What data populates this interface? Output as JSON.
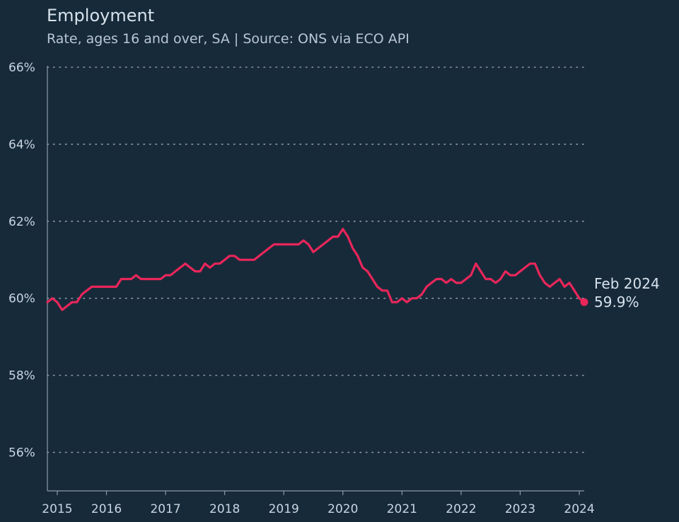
{
  "header": {
    "title": "Employment",
    "subtitle": "Rate, ages 16 and over, SA | Source: ONS via ECO API"
  },
  "colors": {
    "background": "#172a3a",
    "line": "#e8265a",
    "grid": "#8a9aa8",
    "axis": "#8a9aa8",
    "text": "#c9d6e2"
  },
  "chart_data": {
    "type": "line",
    "title": "Employment",
    "subtitle": "Rate, ages 16 and over, SA | Source: ONS via ECO API",
    "xlabel": "",
    "ylabel": "",
    "ylim": [
      55,
      66
    ],
    "xlim": [
      "2015-01",
      "2024-02"
    ],
    "y_ticks": [
      {
        "value": 56,
        "label": "56%"
      },
      {
        "value": 58,
        "label": "58%"
      },
      {
        "value": 60,
        "label": "60%"
      },
      {
        "value": 62,
        "label": "62%"
      },
      {
        "value": 64,
        "label": "64%"
      },
      {
        "value": 66,
        "label": "66%"
      }
    ],
    "x_ticks": [
      {
        "value": "2015-03",
        "label": "2015"
      },
      {
        "value": "2016-01",
        "label": "2016"
      },
      {
        "value": "2017-01",
        "label": "2017"
      },
      {
        "value": "2018-01",
        "label": "2018"
      },
      {
        "value": "2019-01",
        "label": "2019"
      },
      {
        "value": "2020-01",
        "label": "2020"
      },
      {
        "value": "2021-01",
        "label": "2021"
      },
      {
        "value": "2022-01",
        "label": "2022"
      },
      {
        "value": "2023-01",
        "label": "2023"
      },
      {
        "value": "2024-01",
        "label": "2024"
      }
    ],
    "grid": "horizontal dotted",
    "series": [
      {
        "points": [
          [
            "2015-01",
            59.9
          ],
          [
            "2015-02",
            60.0
          ],
          [
            "2015-03",
            59.9
          ],
          [
            "2015-04",
            59.7
          ],
          [
            "2015-05",
            59.8
          ],
          [
            "2015-06",
            59.9
          ],
          [
            "2015-07",
            59.9
          ],
          [
            "2015-08",
            60.1
          ],
          [
            "2015-09",
            60.2
          ],
          [
            "2015-10",
            60.3
          ],
          [
            "2015-11",
            60.3
          ],
          [
            "2015-12",
            60.3
          ],
          [
            "2016-01",
            60.3
          ],
          [
            "2016-02",
            60.3
          ],
          [
            "2016-03",
            60.3
          ],
          [
            "2016-04",
            60.5
          ],
          [
            "2016-05",
            60.5
          ],
          [
            "2016-06",
            60.5
          ],
          [
            "2016-07",
            60.6
          ],
          [
            "2016-08",
            60.5
          ],
          [
            "2016-09",
            60.5
          ],
          [
            "2016-10",
            60.5
          ],
          [
            "2016-11",
            60.5
          ],
          [
            "2016-12",
            60.5
          ],
          [
            "2017-01",
            60.6
          ],
          [
            "2017-02",
            60.6
          ],
          [
            "2017-03",
            60.7
          ],
          [
            "2017-04",
            60.8
          ],
          [
            "2017-05",
            60.9
          ],
          [
            "2017-06",
            60.8
          ],
          [
            "2017-07",
            60.7
          ],
          [
            "2017-08",
            60.7
          ],
          [
            "2017-09",
            60.9
          ],
          [
            "2017-10",
            60.8
          ],
          [
            "2017-11",
            60.9
          ],
          [
            "2017-12",
            60.9
          ],
          [
            "2018-01",
            61.0
          ],
          [
            "2018-02",
            61.1
          ],
          [
            "2018-03",
            61.1
          ],
          [
            "2018-04",
            61.0
          ],
          [
            "2018-05",
            61.0
          ],
          [
            "2018-06",
            61.0
          ],
          [
            "2018-07",
            61.0
          ],
          [
            "2018-08",
            61.1
          ],
          [
            "2018-09",
            61.2
          ],
          [
            "2018-10",
            61.3
          ],
          [
            "2018-11",
            61.4
          ],
          [
            "2018-12",
            61.4
          ],
          [
            "2019-01",
            61.4
          ],
          [
            "2019-02",
            61.4
          ],
          [
            "2019-03",
            61.4
          ],
          [
            "2019-04",
            61.4
          ],
          [
            "2019-05",
            61.5
          ],
          [
            "2019-06",
            61.4
          ],
          [
            "2019-07",
            61.2
          ],
          [
            "2019-08",
            61.3
          ],
          [
            "2019-09",
            61.4
          ],
          [
            "2019-10",
            61.5
          ],
          [
            "2019-11",
            61.6
          ],
          [
            "2019-12",
            61.6
          ],
          [
            "2020-01",
            61.8
          ],
          [
            "2020-02",
            61.6
          ],
          [
            "2020-03",
            61.3
          ],
          [
            "2020-04",
            61.1
          ],
          [
            "2020-05",
            60.8
          ],
          [
            "2020-06",
            60.7
          ],
          [
            "2020-07",
            60.5
          ],
          [
            "2020-08",
            60.3
          ],
          [
            "2020-09",
            60.2
          ],
          [
            "2020-10",
            60.2
          ],
          [
            "2020-11",
            59.9
          ],
          [
            "2020-12",
            59.9
          ],
          [
            "2021-01",
            60.0
          ],
          [
            "2021-02",
            59.9
          ],
          [
            "2021-03",
            60.0
          ],
          [
            "2021-04",
            60.0
          ],
          [
            "2021-05",
            60.1
          ],
          [
            "2021-06",
            60.3
          ],
          [
            "2021-07",
            60.4
          ],
          [
            "2021-08",
            60.5
          ],
          [
            "2021-09",
            60.5
          ],
          [
            "2021-10",
            60.4
          ],
          [
            "2021-11",
            60.5
          ],
          [
            "2021-12",
            60.4
          ],
          [
            "2022-01",
            60.4
          ],
          [
            "2022-02",
            60.5
          ],
          [
            "2022-03",
            60.6
          ],
          [
            "2022-04",
            60.9
          ],
          [
            "2022-05",
            60.7
          ],
          [
            "2022-06",
            60.5
          ],
          [
            "2022-07",
            60.5
          ],
          [
            "2022-08",
            60.4
          ],
          [
            "2022-09",
            60.5
          ],
          [
            "2022-10",
            60.7
          ],
          [
            "2022-11",
            60.6
          ],
          [
            "2022-12",
            60.6
          ],
          [
            "2023-01",
            60.7
          ],
          [
            "2023-02",
            60.8
          ],
          [
            "2023-03",
            60.9
          ],
          [
            "2023-04",
            60.9
          ],
          [
            "2023-05",
            60.6
          ],
          [
            "2023-06",
            60.4
          ],
          [
            "2023-07",
            60.3
          ],
          [
            "2023-08",
            60.4
          ],
          [
            "2023-09",
            60.5
          ],
          [
            "2023-10",
            60.3
          ],
          [
            "2023-11",
            60.4
          ],
          [
            "2023-12",
            60.2
          ],
          [
            "2024-01",
            60.0
          ],
          [
            "2024-02",
            59.9
          ]
        ]
      }
    ],
    "annotation": {
      "x": "2024-02",
      "y": 59.9,
      "label_date": "Feb 2024",
      "label_value": "59.9%"
    }
  }
}
